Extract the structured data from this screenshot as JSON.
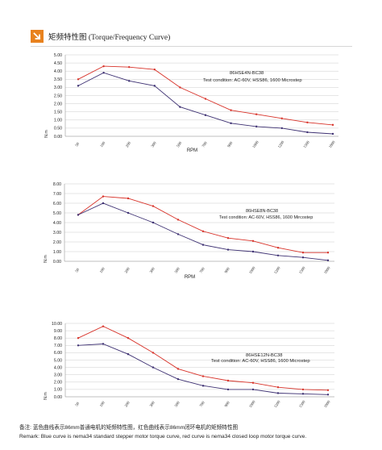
{
  "header": {
    "title": "矩频特性图 (Torque/Frequency Curve)",
    "icon": "arrow-down-right-icon",
    "accent": "#e8821e"
  },
  "colors": {
    "red": "#d8332a",
    "blue": "#3d3072",
    "grid": "#cccccc"
  },
  "chart_data": [
    {
      "type": "line",
      "categories": [
        "50",
        "100",
        "200",
        "300",
        "500",
        "700",
        "900",
        "1000",
        "1200",
        "1500",
        "1800"
      ],
      "yticks": [
        "5.00",
        "4.50",
        "4.00",
        "3.50",
        "3.00",
        "2.50",
        "2.00",
        "1.50",
        "1.00",
        "0.50",
        "0.00"
      ],
      "ylim": [
        0,
        5
      ],
      "xlabel": "RPM",
      "ylabel": "N.m",
      "model": "86HSE4N-BC38",
      "condition": "Test condition:  AC-60V,  HSS86,  1600 Microstep",
      "series": [
        {
          "color": "red",
          "values": [
            3.5,
            4.3,
            4.25,
            4.1,
            3.0,
            2.3,
            1.6,
            1.35,
            1.1,
            0.85,
            0.7
          ]
        },
        {
          "color": "blue",
          "values": [
            3.1,
            3.9,
            3.4,
            3.1,
            1.8,
            1.3,
            0.8,
            0.6,
            0.5,
            0.25,
            0.15
          ]
        }
      ]
    },
    {
      "type": "line",
      "categories": [
        "50",
        "100",
        "200",
        "300",
        "500",
        "700",
        "900",
        "1000",
        "1200",
        "1500",
        "1800"
      ],
      "yticks": [
        "8.00",
        "7.00",
        "6.00",
        "5.00",
        "4.00",
        "3.00",
        "2.00",
        "1.00",
        "0.00"
      ],
      "ylim": [
        0,
        8
      ],
      "xlabel": "RPM",
      "ylabel": "N.m",
      "model": "86HSE8N-BC38",
      "condition": "Test condition:  AC-60V,  HSS86,  1600 Mircostep",
      "series": [
        {
          "color": "red",
          "values": [
            4.8,
            6.7,
            6.5,
            5.7,
            4.3,
            3.1,
            2.4,
            2.1,
            1.4,
            0.9,
            0.9
          ]
        },
        {
          "color": "blue",
          "values": [
            4.8,
            6.0,
            5.0,
            4.0,
            2.8,
            1.7,
            1.2,
            1.0,
            0.6,
            0.4,
            0.1
          ]
        }
      ]
    },
    {
      "type": "line",
      "categories": [
        "50",
        "100",
        "200",
        "300",
        "500",
        "700",
        "900",
        "1000",
        "1200",
        "1500",
        "1800"
      ],
      "yticks": [
        "10.00",
        "9.00",
        "8.00",
        "7.00",
        "6.00",
        "5.00",
        "4.00",
        "3.00",
        "2.00",
        "1.00",
        "0.00"
      ],
      "ylim": [
        0,
        10
      ],
      "xlabel": "RPM",
      "ylabel": "N.m",
      "model": "86HSE12N-BC38",
      "condition": "Test condition:  AC-60V,  HSS86,  1600 Microstep",
      "series": [
        {
          "color": "red",
          "values": [
            8.0,
            9.6,
            8.0,
            6.0,
            3.8,
            2.8,
            2.2,
            1.9,
            1.3,
            1.0,
            0.9
          ]
        },
        {
          "color": "blue",
          "values": [
            7.0,
            7.2,
            5.8,
            4.0,
            2.4,
            1.5,
            1.0,
            1.0,
            0.5,
            0.4,
            0.3
          ]
        }
      ]
    }
  ],
  "notes": {
    "cn": "备注:   蓝色曲线表示86mm普通电机的矩频特性图，红色曲线表示86mm闭环电机的矩频特性图",
    "en": "Remark: Blue curve is nema34 standard stepper motor torque curve, red curve is nema34 closed loop motor torque curve."
  }
}
